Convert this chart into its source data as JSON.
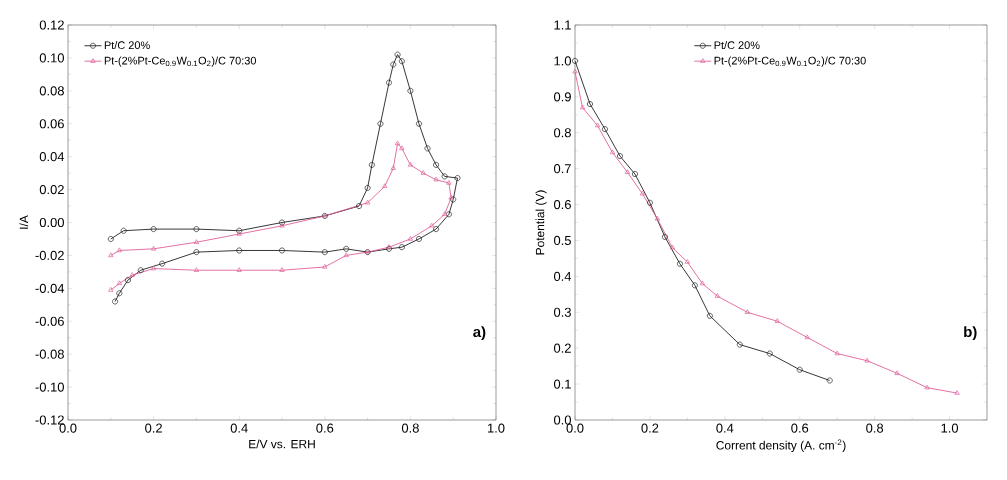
{
  "chart_data": [
    {
      "type": "line",
      "xlabel": "E/V vs. ERH",
      "ylabel": "I/A",
      "annotations": [
        "a)"
      ],
      "legend": "top left",
      "xlim": [
        0,
        1
      ],
      "ylim": [
        -0.12,
        0.12
      ],
      "xticks": [
        {
          "value": 0,
          "label": "0.0"
        },
        {
          "value": 0.2,
          "label": "0.2"
        },
        {
          "value": 0.4,
          "label": "0.4"
        },
        {
          "value": 0.6,
          "label": "0.6"
        },
        {
          "value": 0.8,
          "label": "0.8"
        },
        {
          "value": 1,
          "label": "1.0"
        }
      ],
      "yticks": [
        {
          "value": -0.12,
          "label": "-0.12"
        },
        {
          "value": -0.1,
          "label": "-0.10"
        },
        {
          "value": -0.08,
          "label": "-0.08"
        },
        {
          "value": -0.06,
          "label": "-0.06"
        },
        {
          "value": -0.04,
          "label": "-0.04"
        },
        {
          "value": -0.02,
          "label": "-0.02"
        },
        {
          "value": 0,
          "label": "0.00"
        },
        {
          "value": 0.02,
          "label": "0.02"
        },
        {
          "value": 0.04,
          "label": "0.04"
        },
        {
          "value": 0.06,
          "label": "0.06"
        },
        {
          "value": 0.08,
          "label": "0.08"
        },
        {
          "value": 0.1,
          "label": "0.10"
        },
        {
          "value": 0.12,
          "label": "0.12"
        }
      ],
      "series": [
        {
          "name": "Pt/C 20%",
          "color": "#202020",
          "marker": "circle",
          "x": [
            0.11,
            0.12,
            0.14,
            0.17,
            0.22,
            0.3,
            0.4,
            0.5,
            0.6,
            0.65,
            0.7,
            0.75,
            0.78,
            0.82,
            0.86,
            0.89,
            0.9,
            0.91,
            0.88,
            0.86,
            0.84,
            0.82,
            0.8,
            0.78,
            0.77,
            0.76,
            0.75,
            0.73,
            0.71,
            0.7,
            0.68,
            0.6,
            0.5,
            0.4,
            0.3,
            0.2,
            0.13,
            0.1
          ],
          "values": [
            -0.048,
            -0.043,
            -0.035,
            -0.029,
            -0.025,
            -0.018,
            -0.017,
            -0.017,
            -0.018,
            -0.016,
            -0.018,
            -0.016,
            -0.015,
            -0.01,
            -0.004,
            0.005,
            0.014,
            0.027,
            0.028,
            0.035,
            0.045,
            0.06,
            0.08,
            0.098,
            0.102,
            0.096,
            0.085,
            0.06,
            0.035,
            0.021,
            0.01,
            0.004,
            0,
            -0.005,
            -0.004,
            -0.004,
            -0.005,
            -0.01
          ]
        },
        {
          "name": "Pt-(2%Pt-Ce$_{0.9}$W$_{0.1}$O$_{2}$)/C 70:30",
          "color": "#e0609a",
          "marker": "triangle",
          "x": [
            0.1,
            0.12,
            0.2,
            0.3,
            0.4,
            0.5,
            0.6,
            0.7,
            0.74,
            0.76,
            0.77,
            0.78,
            0.8,
            0.83,
            0.86,
            0.89,
            0.895,
            0.88,
            0.85,
            0.8,
            0.75,
            0.7,
            0.65,
            0.6,
            0.5,
            0.4,
            0.3,
            0.2,
            0.15,
            0.12,
            0.1
          ],
          "values": [
            -0.02,
            -0.017,
            -0.016,
            -0.012,
            -0.007,
            -0.002,
            0.004,
            0.012,
            0.022,
            0.033,
            0.048,
            0.045,
            0.035,
            0.03,
            0.026,
            0.024,
            0.015,
            0.005,
            -0.002,
            -0.01,
            -0.015,
            -0.018,
            -0.02,
            -0.027,
            -0.029,
            -0.029,
            -0.029,
            -0.028,
            -0.032,
            -0.037,
            -0.041
          ]
        }
      ]
    },
    {
      "type": "line",
      "xlabel": "Corrent density (A. cm$^{-2}$)",
      "ylabel": "Potential (V)",
      "annotations": [
        "b)"
      ],
      "legend": "top",
      "xlim": [
        0,
        1.1
      ],
      "ylim": [
        0,
        1.1
      ],
      "xticks": [
        {
          "value": 0,
          "label": "0.0"
        },
        {
          "value": 0.2,
          "label": "0.2"
        },
        {
          "value": 0.4,
          "label": "0.4"
        },
        {
          "value": 0.6,
          "label": "0.6"
        },
        {
          "value": 0.8,
          "label": "0.8"
        },
        {
          "value": 1,
          "label": "1.0"
        }
      ],
      "yticks": [
        {
          "value": 0,
          "label": "0.0"
        },
        {
          "value": 0.1,
          "label": "0.1"
        },
        {
          "value": 0.2,
          "label": "0.2"
        },
        {
          "value": 0.3,
          "label": "0.3"
        },
        {
          "value": 0.4,
          "label": "0.4"
        },
        {
          "value": 0.5,
          "label": "0.5"
        },
        {
          "value": 0.6,
          "label": "0.6"
        },
        {
          "value": 0.7,
          "label": "0.7"
        },
        {
          "value": 0.8,
          "label": "0.8"
        },
        {
          "value": 0.9,
          "label": "0.9"
        },
        {
          "value": 1,
          "label": "1.0"
        },
        {
          "value": 1.1,
          "label": "1.1"
        }
      ],
      "series": [
        {
          "name": "Pt/C 20%",
          "color": "#202020",
          "marker": "circle",
          "x": [
            0,
            0.04,
            0.08,
            0.12,
            0.16,
            0.2,
            0.24,
            0.28,
            0.32,
            0.36,
            0.44,
            0.52,
            0.6,
            0.68
          ],
          "values": [
            1.0,
            0.88,
            0.81,
            0.735,
            0.685,
            0.605,
            0.51,
            0.435,
            0.375,
            0.29,
            0.21,
            0.185,
            0.14,
            0.11
          ]
        },
        {
          "name": "Pt-(2%Pt-Ce$_{0.9}$W$_{0.1}$O$_{2}$)/C 70:30",
          "color": "#e0609a",
          "marker": "triangle",
          "x": [
            0,
            0.02,
            0.06,
            0.1,
            0.14,
            0.18,
            0.22,
            0.26,
            0.3,
            0.34,
            0.38,
            0.46,
            0.54,
            0.62,
            0.7,
            0.78,
            0.86,
            0.94,
            1.02
          ],
          "values": [
            0.97,
            0.87,
            0.82,
            0.745,
            0.69,
            0.63,
            0.56,
            0.48,
            0.44,
            0.38,
            0.345,
            0.3,
            0.275,
            0.23,
            0.185,
            0.165,
            0.13,
            0.09,
            0.075
          ]
        }
      ]
    }
  ]
}
